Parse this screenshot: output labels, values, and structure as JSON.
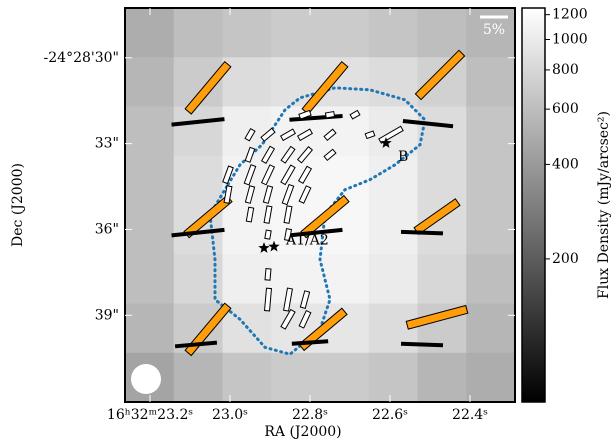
{
  "chart_data": {
    "type": "polarization_map",
    "xlabel": "RA (J2000)",
    "ylabel": "Dec (J2000)",
    "xlim": [
      23.2625,
      22.2875
    ],
    "xticks": [
      {
        "value": 23.2,
        "label": "16ʰ32ᵐ23.2ˢ"
      },
      {
        "value": 23.0,
        "label": "23.0ˢ"
      },
      {
        "value": 22.8,
        "label": "22.8ˢ"
      },
      {
        "value": 22.6,
        "label": "22.6ˢ"
      },
      {
        "value": 22.4,
        "label": "22.4ˢ"
      }
    ],
    "ylim": [
      28.26,
      42.03
    ],
    "yticks": [
      {
        "value": 30,
        "label": "-24°28'30\""
      },
      {
        "value": 33,
        "label": "33\""
      },
      {
        "value": 36,
        "label": "36\""
      },
      {
        "value": 39,
        "label": "39\""
      }
    ],
    "colorbar": {
      "label": "Flux Density (mJy/arcsec²)",
      "log": true,
      "clim": [
        70,
        1260
      ],
      "ticks": [
        200,
        400,
        600,
        800,
        1000,
        1200
      ]
    },
    "image": [
      [
        500,
        600,
        650,
        700,
        700,
        650,
        600,
        550
      ],
      [
        550,
        700,
        850,
        900,
        900,
        850,
        750,
        600
      ],
      [
        600,
        800,
        1050,
        1100,
        1100,
        1000,
        850,
        650
      ],
      [
        600,
        850,
        1100,
        1150,
        1150,
        1050,
        850,
        650
      ],
      [
        600,
        850,
        1100,
        1150,
        1150,
        1050,
        850,
        650
      ],
      [
        600,
        800,
        1050,
        1100,
        1100,
        1000,
        800,
        600
      ],
      [
        550,
        700,
        900,
        950,
        950,
        850,
        700,
        550
      ],
      [
        450,
        550,
        650,
        700,
        700,
        650,
        550,
        500
      ]
    ],
    "scale_bar": {
      "value": 5,
      "label": "5%"
    },
    "vectors": [
      {
        "style": "thick",
        "color": "#ff9d0a",
        "x": [
          23.055,
          22.7625,
          22.475,
          23.055,
          22.7625,
          22.4825,
          23.055,
          22.7675,
          22.4825
        ],
        "y": [
          31.05,
          31.05,
          30.6,
          35.55,
          35.55,
          35.55,
          39.49,
          39.49,
          39.07
        ],
        "p": [
          11,
          11,
          11,
          10,
          10,
          9,
          11,
          10,
          11
        ],
        "angle": [
          50,
          50,
          45,
          40,
          40,
          35,
          50,
          40,
          15
        ]
      },
      {
        "style": "line",
        "color": "#000000",
        "x": [
          23.08,
          22.785,
          22.505,
          23.08,
          22.785,
          22.52,
          23.085,
          22.8,
          22.52
        ],
        "y": [
          32.24,
          32.1,
          32.3,
          36.11,
          36.11,
          36.11,
          40.02,
          39.95,
          40.02
        ],
        "p": [
          9.5,
          9.5,
          9,
          9.5,
          9.5,
          7.5,
          7.5,
          6.5,
          7.5
        ],
        "angle": [
          6,
          4,
          -6,
          6,
          6,
          -2,
          5,
          4,
          -2
        ]
      },
      {
        "style": "outline",
        "color": "#ffffff",
        "x": [
          22.8125,
          22.75,
          22.6875,
          22.65,
          22.5975,
          22.95,
          22.905,
          22.855,
          22.8125,
          22.75,
          22.95,
          22.905,
          22.855,
          22.8125,
          22.75,
          23.005,
          22.95,
          22.905,
          22.855,
          22.8125,
          23.005,
          22.95,
          22.905,
          22.855,
          22.8125,
          22.95,
          22.905,
          22.855,
          22.905,
          22.855,
          22.905,
          22.855,
          22.8125,
          22.855,
          22.8125,
          22.905
        ],
        "y": [
          31.99,
          31.99,
          31.99,
          32.69,
          32.69,
          32.69,
          32.69,
          32.69,
          32.69,
          32.69,
          33.39,
          33.39,
          33.39,
          33.39,
          33.39,
          34.09,
          34.09,
          34.09,
          34.09,
          34.09,
          34.78,
          34.78,
          34.78,
          34.78,
          34.78,
          35.48,
          35.48,
          35.48,
          36.18,
          36.18,
          38.45,
          38.45,
          38.45,
          39.14,
          39.14,
          37.57
        ],
        "p": [
          2,
          1.5,
          1.5,
          1.5,
          4.5,
          2,
          2.5,
          2.5,
          2.5,
          2,
          2.5,
          3,
          3,
          3,
          2,
          3,
          3.5,
          3.5,
          3.5,
          3,
          3,
          3,
          3,
          3.5,
          3,
          2.5,
          3,
          3,
          1.5,
          2,
          4,
          4,
          3,
          3.5,
          3,
          2
        ],
        "angle": [
          20,
          10,
          30,
          20,
          30,
          60,
          40,
          30,
          30,
          40,
          70,
          60,
          55,
          50,
          40,
          70,
          70,
          65,
          60,
          60,
          80,
          75,
          75,
          70,
          65,
          80,
          80,
          80,
          80,
          80,
          85,
          80,
          75,
          60,
          65,
          85
        ]
      }
    ],
    "contour": {
      "color": "#1f77b4",
      "x": [
        23.005,
        22.975,
        22.92,
        22.8625,
        22.825,
        22.7375,
        22.65,
        22.5625,
        22.5125,
        22.525,
        22.5875,
        22.65,
        22.7125,
        22.7625,
        22.775,
        22.75,
        22.775,
        22.85,
        22.9125,
        22.975,
        23.0375,
        23.0375,
        23.05,
        23.005
      ],
      "y": [
        34.43,
        33.74,
        33.04,
        31.82,
        31.4,
        31.05,
        31.12,
        31.47,
        32.17,
        33.04,
        33.74,
        34.26,
        34.61,
        35.48,
        37.05,
        38.45,
        39.49,
        40.36,
        40.12,
        39.14,
        38.45,
        37.05,
        35.48,
        34.43
      ]
    },
    "sources": [
      {
        "label": "A1/A2",
        "x": [
          22.915,
          22.89
        ],
        "y": [
          36.65,
          36.6
        ]
      },
      {
        "label": "B",
        "x": [
          22.61
        ],
        "y": [
          32.98
        ]
      }
    ]
  }
}
